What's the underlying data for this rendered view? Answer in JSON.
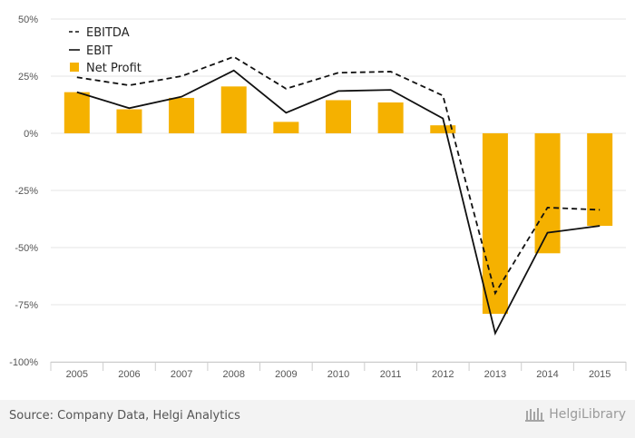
{
  "chart_data": {
    "type": "bar",
    "categories": [
      "2005",
      "2006",
      "2007",
      "2008",
      "2009",
      "2010",
      "2011",
      "2012",
      "2013",
      "2014",
      "2015"
    ],
    "series": [
      {
        "name": "EBITDA",
        "kind": "line",
        "style": "dashed",
        "values": [
          24.5,
          21,
          25,
          33.5,
          19.5,
          26.5,
          27,
          16.5,
          -70,
          -32.5,
          -33.5
        ]
      },
      {
        "name": "EBIT",
        "kind": "line",
        "style": "solid",
        "values": [
          18,
          11,
          16,
          27.5,
          9,
          18.5,
          19,
          6.5,
          -87.5,
          -43.5,
          -40.5
        ]
      },
      {
        "name": "Net Profit",
        "kind": "bar",
        "values": [
          18,
          10.5,
          15.5,
          20.5,
          5,
          14.5,
          13.5,
          3.5,
          -79,
          -52.5,
          -40.5
        ]
      }
    ],
    "yticks": [
      "50%",
      "25%",
      "0%",
      "-25%",
      "-50%",
      "-75%",
      "-100%"
    ],
    "ylim": [
      -100,
      50
    ],
    "grid": true,
    "legend": "top-left",
    "colors": {
      "bar": "#f5b100",
      "line": "#111111"
    }
  },
  "footer": {
    "source": "Source: Company Data, Helgi Analytics",
    "brand": "HelgiLibrary"
  }
}
